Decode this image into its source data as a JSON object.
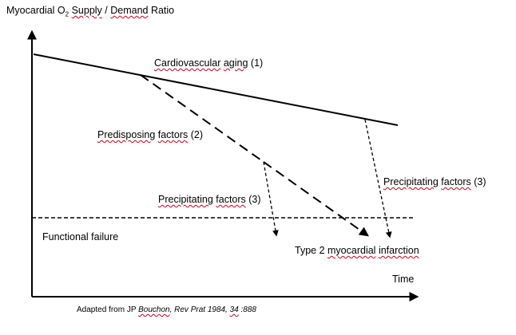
{
  "diagram": {
    "y_axis_label": {
      "prefix": "Myocardial O",
      "subscript": "2",
      "supply": "Supply",
      "slash": " / ",
      "demand": "Demand",
      "suffix": " Ratio"
    },
    "x_axis_label": "Time",
    "labels": {
      "aging": {
        "word1": "Cardiovascular",
        "word2": "aging",
        "tag": " (1)"
      },
      "predisposing": {
        "word1": "Predisposing",
        "word2": "factors",
        "tag": " (2)"
      },
      "precip_mid": {
        "word1": "Precipitating",
        "word2": "factors",
        "tag": " (3)"
      },
      "precip_right": {
        "word1": "Precipitating",
        "word2": "factors",
        "tag": " (3)"
      },
      "functional_failure": "Functional failure",
      "mi": {
        "word1": "Type 2",
        "word2": "myocardial",
        "word3": "infarction"
      }
    },
    "caption": {
      "prefix": "Adapted from JP ",
      "author": "Bouchon",
      "journal": ", Rev Prat 1984, ",
      "volume": "34",
      "pages": " :888"
    }
  }
}
